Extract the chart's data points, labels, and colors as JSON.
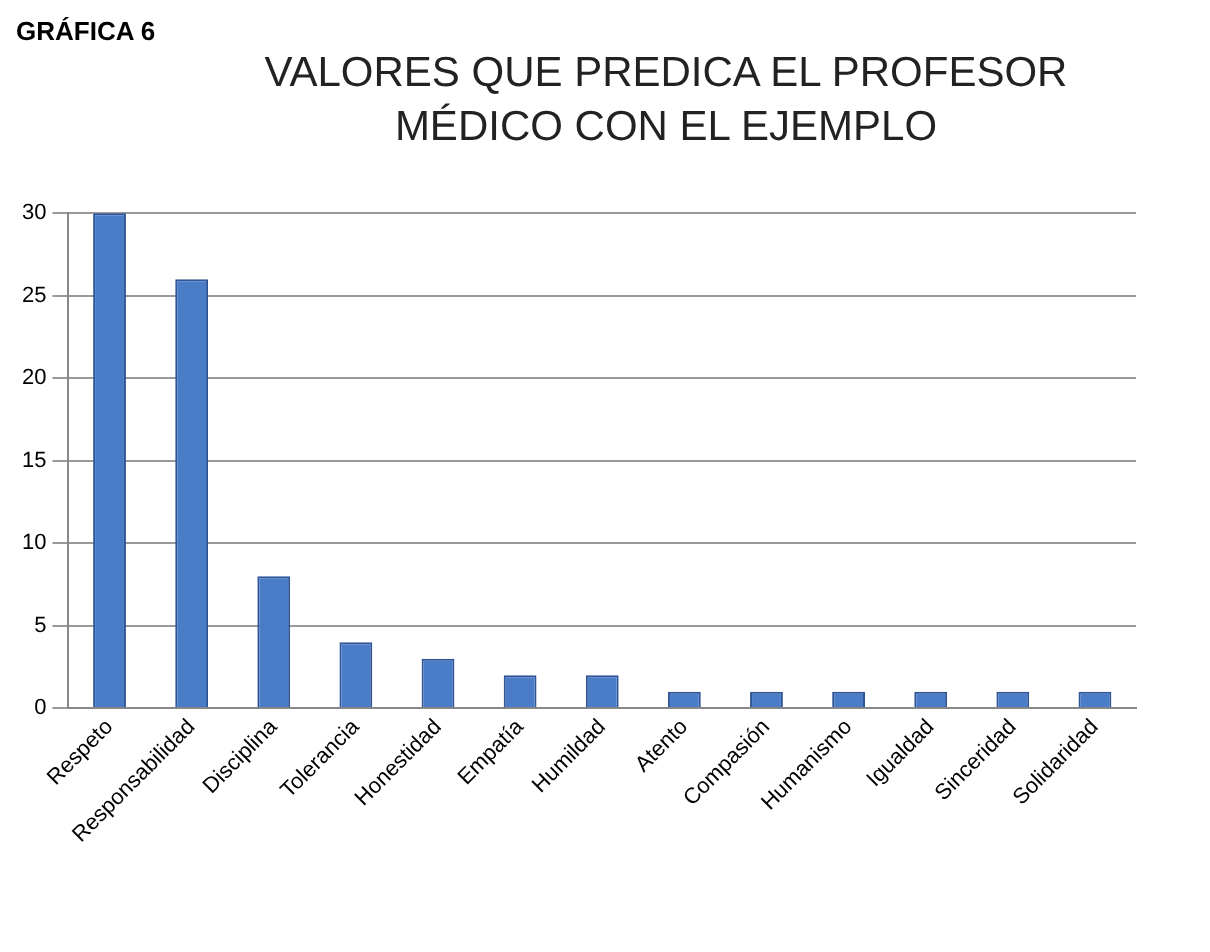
{
  "chart_data": {
    "type": "bar",
    "title": "VALORES QUE PREDICA EL PROFESOR MÉDICO CON EL EJEMPLO",
    "annotations": [
      "GRÁFICA 6"
    ],
    "categories": [
      "Respeto",
      "Responsabilidad",
      "Disciplina",
      "Tolerancia",
      "Honestidad",
      "Empatía",
      "Humildad",
      "Atento",
      "Compasión",
      "Humanismo",
      "Igualdad",
      "Sinceridad",
      "Solidaridad"
    ],
    "values": [
      30,
      26,
      8,
      4,
      3,
      2,
      2,
      1,
      1,
      1,
      1,
      1,
      1
    ],
    "color": "#4a7cc7",
    "ylim": [
      0,
      30
    ],
    "yticks": [
      0,
      5,
      10,
      15,
      20,
      25,
      30
    ],
    "grid": "y",
    "legend": false
  }
}
